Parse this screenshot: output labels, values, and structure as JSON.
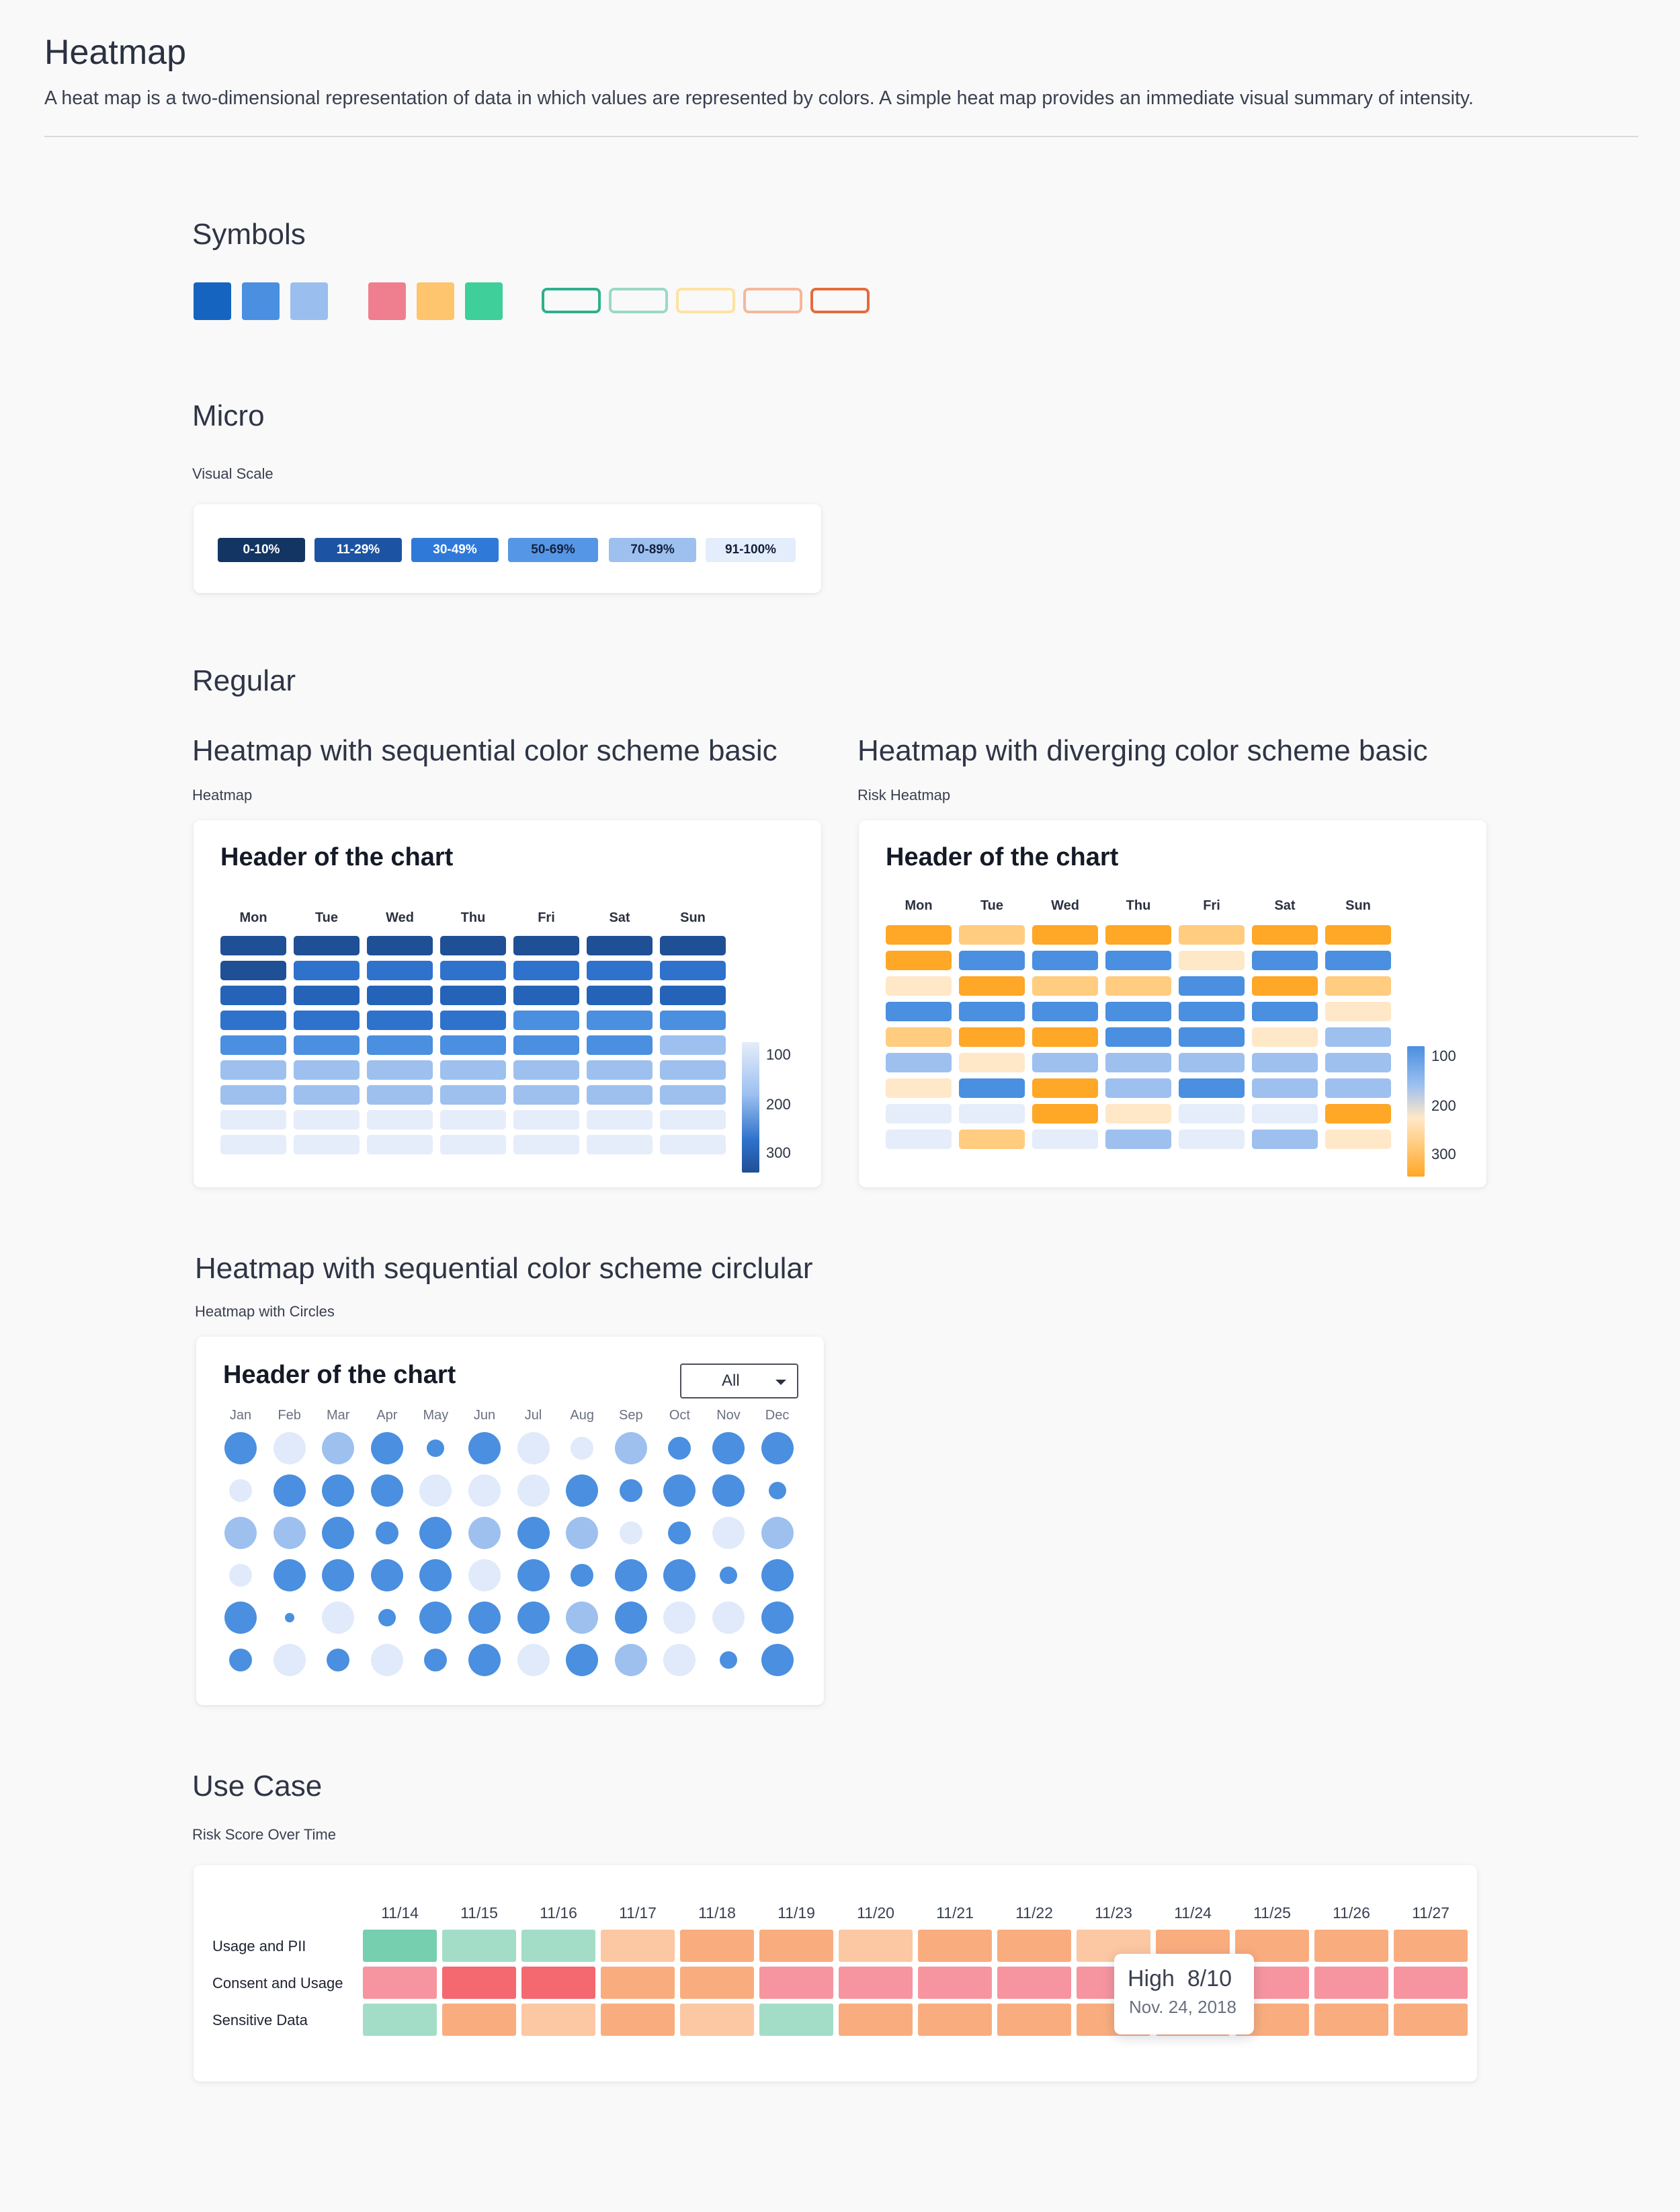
{
  "page": {
    "title": "Heatmap",
    "description": "A heat map is a two-dimensional representation of data in which values are represented by colors. A simple heat map provides an immediate visual summary of intensity."
  },
  "symbols": {
    "title": "Symbols",
    "fills": [
      "#1565c0",
      "#4a8fe0",
      "#9abfee",
      "#ef7f8e",
      "#ffc46e",
      "#3ecf9a"
    ],
    "outlines": [
      "#2fb08b",
      "#9ad9c6",
      "#fde2a0",
      "#f5b79a",
      "#e66a3a"
    ]
  },
  "micro": {
    "title": "Micro",
    "caption": "Visual Scale",
    "scale": [
      {
        "label": "0-10%",
        "bg": "#133563",
        "fg": "#ffffff"
      },
      {
        "label": "11-29%",
        "bg": "#1c54a3",
        "fg": "#ffffff"
      },
      {
        "label": "30-49%",
        "bg": "#2f7ad9",
        "fg": "#ffffff"
      },
      {
        "label": "50-69%",
        "bg": "#5596e6",
        "fg": "#14213d"
      },
      {
        "label": "70-89%",
        "bg": "#9dc0ef",
        "fg": "#14213d"
      },
      {
        "label": "91-100%",
        "bg": "#e4edfb",
        "fg": "#14213d"
      }
    ]
  },
  "regular": {
    "title": "Regular",
    "sequential": {
      "title": "Heatmap with sequential color scheme basic",
      "caption": "Heatmap",
      "header": "Header of the chart",
      "days": [
        "Mon",
        "Tue",
        "Wed",
        "Thu",
        "Fri",
        "Sat",
        "Sun"
      ],
      "legend": [
        "100",
        "200",
        "300"
      ],
      "palette": [
        "#e5edfa",
        "#9dc0ef",
        "#4a8fe0",
        "#2f72cc",
        "#2563b8",
        "#1f4f95"
      ],
      "rows": [
        [
          5,
          5,
          5,
          5,
          5,
          5,
          5
        ],
        [
          5,
          3,
          3,
          3,
          3,
          3,
          3
        ],
        [
          4,
          4,
          4,
          4,
          4,
          4,
          4
        ],
        [
          3,
          3,
          3,
          3,
          2,
          2,
          2
        ],
        [
          2,
          2,
          2,
          2,
          2,
          2,
          1
        ],
        [
          1,
          1,
          1,
          1,
          1,
          1,
          1
        ],
        [
          1,
          1,
          1,
          1,
          1,
          1,
          1
        ],
        [
          0,
          0,
          0,
          0,
          0,
          0,
          0
        ],
        [
          0,
          0,
          0,
          0,
          0,
          0,
          0
        ]
      ]
    },
    "diverging": {
      "title": "Heatmap with diverging color scheme basic",
      "caption": "Risk Heatmap",
      "header": "Header of the chart",
      "days": [
        "Mon",
        "Tue",
        "Wed",
        "Thu",
        "Fri",
        "Sat",
        "Sun"
      ],
      "legend": [
        "100",
        "200",
        "300"
      ],
      "palette": {
        "o": "#ffa726",
        "l": "#ffcc80",
        "c": "#ffe8c8",
        "b": "#4a8fe0",
        "p": "#9dc0ef",
        "q": "#e5edfa"
      },
      "rows": [
        [
          "o",
          "l",
          "o",
          "o",
          "l",
          "o",
          "o"
        ],
        [
          "o",
          "b",
          "b",
          "b",
          "c",
          "b",
          "b"
        ],
        [
          "c",
          "o",
          "l",
          "l",
          "b",
          "o",
          "l"
        ],
        [
          "b",
          "b",
          "b",
          "b",
          "b",
          "b",
          "c"
        ],
        [
          "l",
          "o",
          "o",
          "b",
          "b",
          "c",
          "p"
        ],
        [
          "p",
          "c",
          "p",
          "p",
          "p",
          "p",
          "p"
        ],
        [
          "c",
          "b",
          "o",
          "p",
          "b",
          "p",
          "p"
        ],
        [
          "q",
          "q",
          "o",
          "c",
          "q",
          "q",
          "o"
        ],
        [
          "q",
          "l",
          "q",
          "p",
          "q",
          "p",
          "c"
        ]
      ]
    },
    "circular": {
      "title": "Heatmap with sequential color scheme circlular",
      "caption": "Heatmap with Circles",
      "header": "Header of the chart",
      "dropdown": "All",
      "months": [
        "Jan",
        "Feb",
        "Mar",
        "Apr",
        "May",
        "Jun",
        "Jul",
        "Aug",
        "Sep",
        "Oct",
        "Nov",
        "Dec"
      ],
      "colors": {
        "d": "#4a8fe0",
        "m": "#9dc0ef",
        "l": "#e0eafa"
      },
      "rows": [
        [
          [
            "d",
            3
          ],
          [
            "l",
            3
          ],
          [
            "m",
            3
          ],
          [
            "d",
            3
          ],
          [
            "d",
            1
          ],
          [
            "d",
            3
          ],
          [
            "l",
            3
          ],
          [
            "l",
            2
          ],
          [
            "m",
            3
          ],
          [
            "d",
            2
          ],
          [
            "d",
            3
          ],
          [
            "d",
            3
          ]
        ],
        [
          [
            "l",
            2
          ],
          [
            "d",
            3
          ],
          [
            "d",
            3
          ],
          [
            "d",
            3
          ],
          [
            "l",
            3
          ],
          [
            "l",
            3
          ],
          [
            "l",
            3
          ],
          [
            "d",
            3
          ],
          [
            "d",
            2
          ],
          [
            "d",
            3
          ],
          [
            "d",
            3
          ],
          [
            "d",
            1
          ]
        ],
        [
          [
            "m",
            3
          ],
          [
            "m",
            3
          ],
          [
            "d",
            3
          ],
          [
            "d",
            2
          ],
          [
            "d",
            3
          ],
          [
            "m",
            3
          ],
          [
            "d",
            3
          ],
          [
            "m",
            3
          ],
          [
            "l",
            2
          ],
          [
            "d",
            2
          ],
          [
            "l",
            3
          ],
          [
            "m",
            3
          ]
        ],
        [
          [
            "l",
            2
          ],
          [
            "d",
            3
          ],
          [
            "d",
            3
          ],
          [
            "d",
            3
          ],
          [
            "d",
            3
          ],
          [
            "l",
            3
          ],
          [
            "d",
            3
          ],
          [
            "d",
            2
          ],
          [
            "d",
            3
          ],
          [
            "d",
            3
          ],
          [
            "d",
            1
          ],
          [
            "d",
            3
          ]
        ],
        [
          [
            "d",
            3
          ],
          [
            "d",
            0
          ],
          [
            "l",
            3
          ],
          [
            "d",
            1
          ],
          [
            "d",
            3
          ],
          [
            "d",
            3
          ],
          [
            "d",
            3
          ],
          [
            "m",
            3
          ],
          [
            "d",
            3
          ],
          [
            "l",
            3
          ],
          [
            "l",
            3
          ],
          [
            "d",
            3
          ]
        ],
        [
          [
            "d",
            2
          ],
          [
            "l",
            3
          ],
          [
            "d",
            2
          ],
          [
            "l",
            3
          ],
          [
            "d",
            2
          ],
          [
            "d",
            3
          ],
          [
            "l",
            3
          ],
          [
            "d",
            3
          ],
          [
            "m",
            3
          ],
          [
            "l",
            3
          ],
          [
            "d",
            1
          ],
          [
            "d",
            3
          ]
        ]
      ]
    }
  },
  "use_case": {
    "title": "Use Case",
    "caption": "Risk Score Over Time",
    "dates": [
      "11/14",
      "11/15",
      "11/16",
      "11/17",
      "11/18",
      "11/19",
      "11/20",
      "11/21",
      "11/22",
      "11/23",
      "11/24",
      "11/25",
      "11/26",
      "11/27"
    ],
    "row_labels": [
      "Usage and PII",
      "Consent and Usage",
      "Sensitive Data"
    ],
    "palette": {
      "g": "#76cfaf",
      "gl": "#a3ddc8",
      "pl": "#fcc7a3",
      "p": "#f9ad7f",
      "pk": "#f6959f",
      "r": "#f4686f"
    },
    "rows": [
      [
        "g",
        "gl",
        "gl",
        "pl",
        "p",
        "p",
        "pl",
        "p",
        "p",
        "pl",
        "p",
        "p",
        "p",
        "p"
      ],
      [
        "pk",
        "r",
        "r",
        "p",
        "p",
        "pk",
        "pk",
        "pk",
        "pk",
        "pk",
        "p",
        "pk",
        "pk",
        "pk"
      ],
      [
        "gl",
        "p",
        "pl",
        "p",
        "pl",
        "gl",
        "p",
        "p",
        "p",
        "p",
        "p",
        "p",
        "p",
        "p"
      ]
    ],
    "tooltip": {
      "value": "High  8/10",
      "date": "Nov. 24, 2018"
    }
  }
}
